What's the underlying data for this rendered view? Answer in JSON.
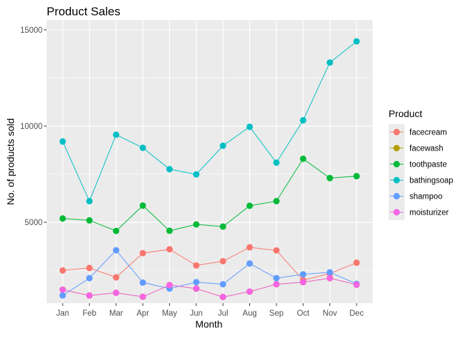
{
  "chart_data": {
    "type": "line",
    "title": "Product Sales",
    "xlabel": "Month",
    "ylabel": "No. of products sold",
    "categories": [
      "Jan",
      "Feb",
      "Mar",
      "Apr",
      "May",
      "Jun",
      "Jul",
      "Aug",
      "Sep",
      "Oct",
      "Nov",
      "Dec"
    ],
    "ylim": [
      800,
      15500
    ],
    "yticks": [
      5000,
      10000,
      15000
    ],
    "yticklabels": [
      "5000",
      "10000",
      "15000"
    ],
    "grid": true,
    "legend": {
      "title": "Product",
      "position": "right"
    },
    "series": [
      {
        "name": "facecream",
        "color": "#F8766D",
        "values": [
          2500,
          2630,
          2140,
          3400,
          3600,
          2760,
          2980,
          3700,
          3540,
          1990,
          2340,
          2900
        ]
      },
      {
        "name": "facewash",
        "color": "#B79F00",
        "values": [
          1500,
          1200,
          1340,
          1130,
          1740,
          1555,
          1120,
          1400,
          1780,
          1890,
          2100,
          1760
        ]
      },
      {
        "name": "toothpaste",
        "color": "#00BA38",
        "values": [
          5200,
          5100,
          4550,
          5870,
          4560,
          4890,
          4780,
          5860,
          6100,
          8300,
          7300,
          7400
        ]
      },
      {
        "name": "bathingsoap",
        "color": "#00BFC4",
        "values": [
          9200,
          6100,
          9550,
          8870,
          7760,
          7490,
          8980,
          9960,
          8100,
          10300,
          13300,
          14400
        ]
      },
      {
        "name": "shampoo",
        "color": "#619CFF",
        "values": [
          1200,
          2100,
          3550,
          1870,
          1560,
          1890,
          1780,
          2860,
          2100,
          2300,
          2400,
          1800
        ]
      },
      {
        "name": "moisturizer",
        "color": "#F564E3",
        "values": [
          1500,
          1200,
          1340,
          1130,
          1740,
          1555,
          1120,
          1400,
          1780,
          1890,
          2100,
          1760
        ]
      }
    ]
  }
}
